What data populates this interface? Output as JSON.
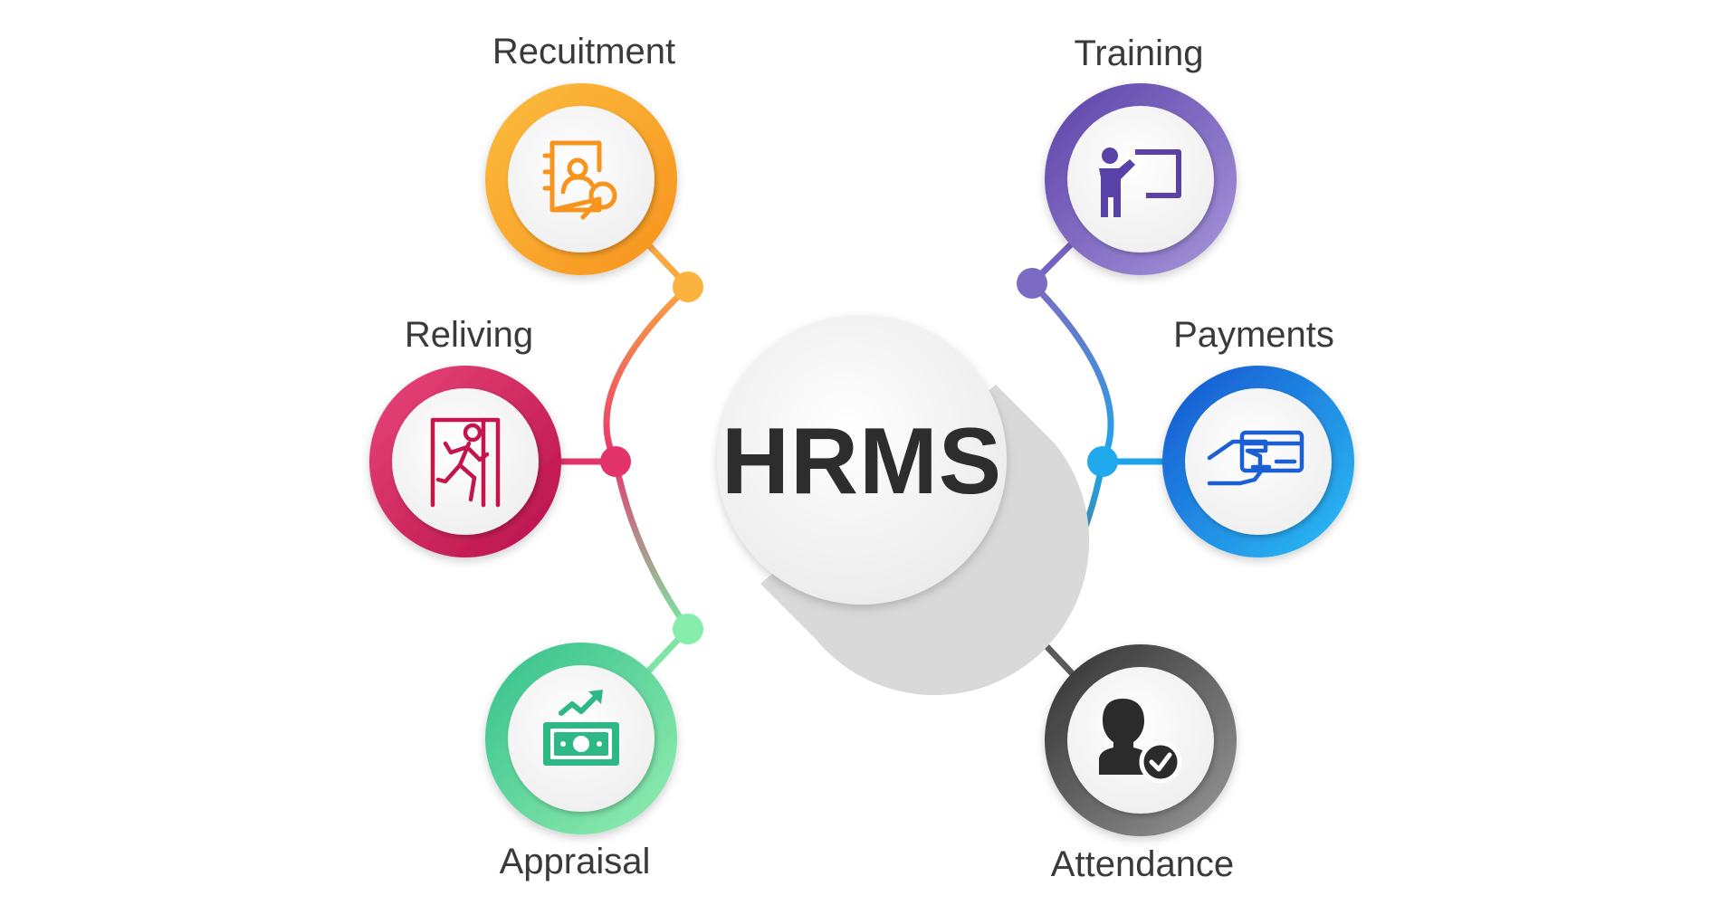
{
  "center": {
    "label": "HRMS"
  },
  "nodes": {
    "recruitment": {
      "label": "Recuitment",
      "icon": "recruitment-icon",
      "color_start": "#f9b234",
      "color_end": "#f7941d"
    },
    "relieving": {
      "label": "Reliving",
      "icon": "exit-icon",
      "color_start": "#e63a6e",
      "color_end": "#c3134c"
    },
    "appraisal": {
      "label": "Appraisal",
      "icon": "money-growth-icon",
      "color_start": "#8ce8a8",
      "color_end": "#2bbf87"
    },
    "training": {
      "label": "Training",
      "icon": "training-board-icon",
      "color_start": "#9a88d4",
      "color_end": "#5b43a8"
    },
    "payments": {
      "label": "Payments",
      "icon": "card-payment-icon",
      "color_start": "#27b2f2",
      "color_end": "#1662d6"
    },
    "attendance": {
      "label": "Attendance",
      "icon": "user-check-icon",
      "color_start": "#8a8a8a",
      "color_end": "#3a3a3a"
    }
  }
}
